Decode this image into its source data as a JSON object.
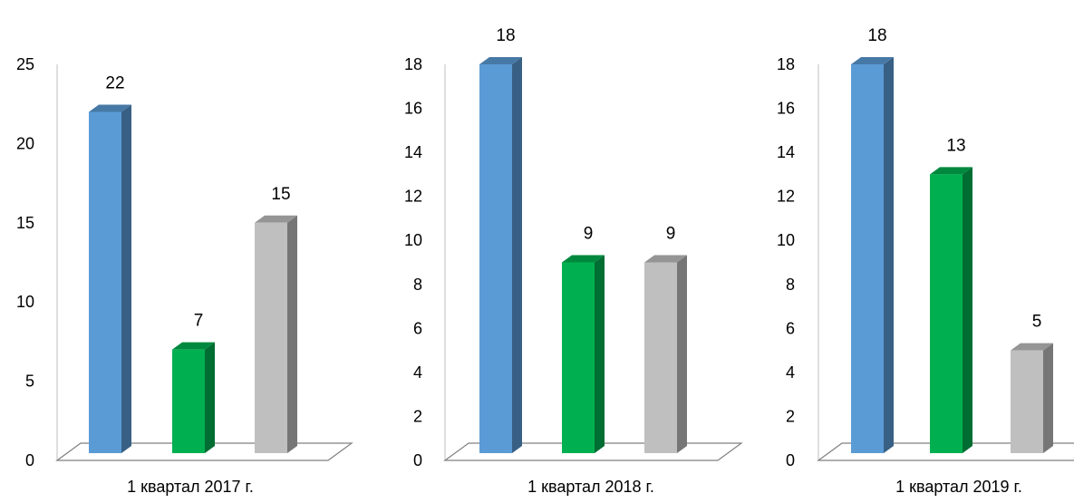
{
  "chart_data": [
    {
      "type": "bar",
      "categories": [
        "1 квартал 2017 г."
      ],
      "series": [
        {
          "values": [
            22
          ],
          "color": "#5b9bd5"
        },
        {
          "values": [
            7
          ],
          "color": "#00b050"
        },
        {
          "values": [
            15
          ],
          "color": "#bfbfbf"
        }
      ],
      "ylim": [
        0,
        25
      ],
      "yticks": [
        0,
        5,
        10,
        15,
        20,
        25
      ],
      "data_labels": [
        "22",
        "7",
        "15"
      ],
      "grid": false,
      "style": "3d-column"
    },
    {
      "type": "bar",
      "categories": [
        "1 квартал 2018 г."
      ],
      "series": [
        {
          "values": [
            18
          ],
          "color": "#5b9bd5"
        },
        {
          "values": [
            9
          ],
          "color": "#00b050"
        },
        {
          "values": [
            9
          ],
          "color": "#bfbfbf"
        }
      ],
      "ylim": [
        0,
        18
      ],
      "yticks": [
        0,
        2,
        4,
        6,
        8,
        10,
        12,
        14,
        16,
        18
      ],
      "data_labels": [
        "18",
        "9",
        "9"
      ],
      "grid": false,
      "style": "3d-column"
    },
    {
      "type": "bar",
      "categories": [
        "1 квартал 2019 г."
      ],
      "series": [
        {
          "values": [
            18
          ],
          "color": "#5b9bd5"
        },
        {
          "values": [
            13
          ],
          "color": "#00b050"
        },
        {
          "values": [
            5
          ],
          "color": "#bfbfbf"
        }
      ],
      "ylim": [
        0,
        18
      ],
      "yticks": [
        0,
        2,
        4,
        6,
        8,
        10,
        12,
        14,
        16,
        18
      ],
      "data_labels": [
        "18",
        "13",
        "5"
      ],
      "grid": false,
      "style": "3d-column"
    }
  ]
}
